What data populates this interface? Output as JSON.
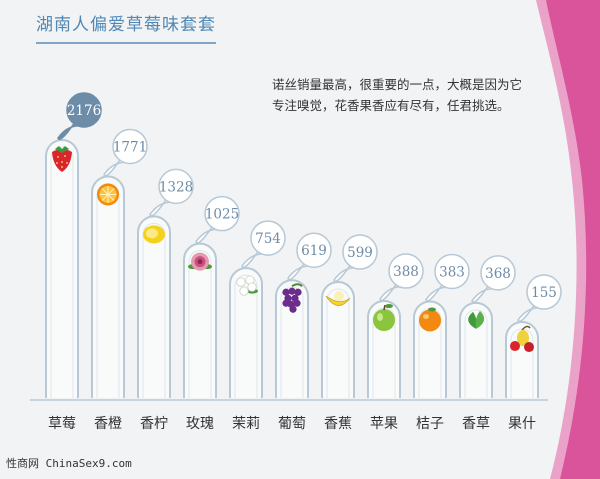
{
  "title": "湖南人偏爱草莓味套套",
  "note": "诺丝销量最高，很重要的一点，大概是因为它专注嗅觉，花香果香应有尽有，任君挑选。",
  "footer": "性商网 ChinaSex9.com",
  "colors": {
    "background": "#f1f3f4",
    "accent_pink": "#d9549b",
    "bar_stroke": "#b7c8d6",
    "highlight_bubble": "#6d8ca8",
    "title": "#4f87b5"
  },
  "chart_data": {
    "type": "bar",
    "categories": [
      "草莓",
      "香橙",
      "香柠",
      "玫瑰",
      "茉莉",
      "葡萄",
      "香蕉",
      "苹果",
      "桔子",
      "香草",
      "果什"
    ],
    "values": [
      2176,
      1771,
      1328,
      1025,
      754,
      619,
      599,
      388,
      383,
      368,
      155
    ],
    "icons": [
      "strawberry-icon",
      "orange-slice-icon",
      "lemon-icon",
      "rose-icon",
      "jasmine-icon",
      "grape-icon",
      "banana-icon",
      "apple-icon",
      "tangerine-icon",
      "mint-leaf-icon",
      "cherry-pear-icon"
    ],
    "highlight_index": 0,
    "ylim": [
      0,
      2300
    ],
    "grid": false
  }
}
